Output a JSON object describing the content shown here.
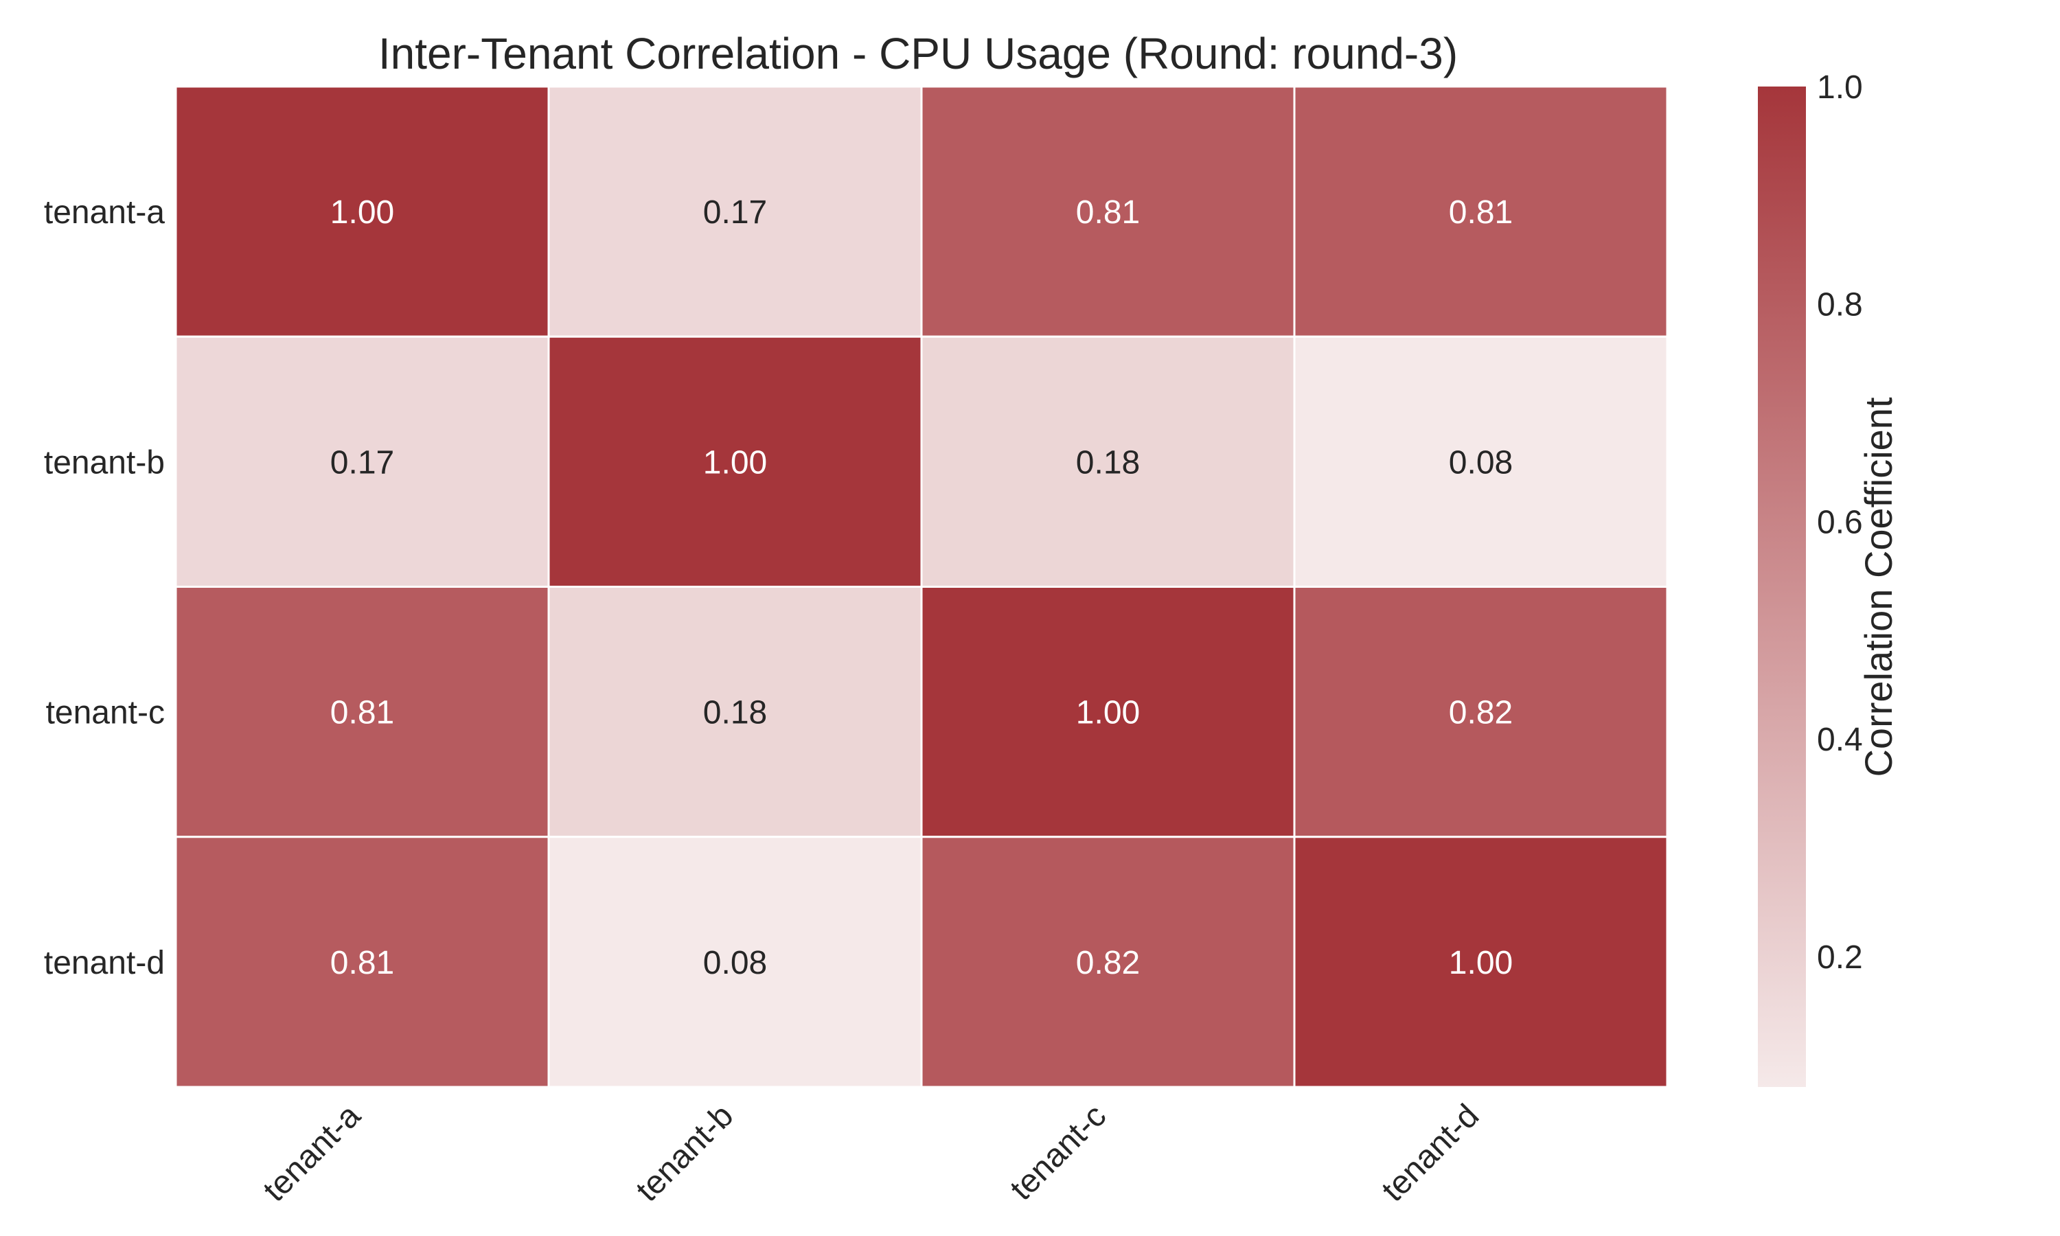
{
  "chart_data": {
    "type": "heatmap",
    "title": "Inter-Tenant Correlation - CPU Usage (Round: round-3)",
    "rows": [
      "tenant-a",
      "tenant-b",
      "tenant-c",
      "tenant-d"
    ],
    "columns": [
      "tenant-a",
      "tenant-b",
      "tenant-c",
      "tenant-d"
    ],
    "values": [
      [
        1.0,
        0.17,
        0.81,
        0.81
      ],
      [
        0.17,
        1.0,
        0.18,
        0.08
      ],
      [
        0.81,
        0.18,
        1.0,
        0.82
      ],
      [
        0.81,
        0.08,
        0.82,
        1.0
      ]
    ],
    "value_format": "2f",
    "colorbar": {
      "label": "Correlation Coefficient",
      "range": [
        0.08,
        1.0
      ],
      "ticks": [
        0.2,
        0.4,
        0.6,
        0.8,
        1.0
      ],
      "tick_labels": [
        "0.2",
        "0.4",
        "0.6",
        "0.8",
        "1.0"
      ],
      "color_low": "#f5e9e9",
      "color_high": "#a5363b"
    },
    "dark_text_color": "#262626",
    "light_text_color": "#ffffff",
    "grid": false,
    "legend": "none"
  }
}
